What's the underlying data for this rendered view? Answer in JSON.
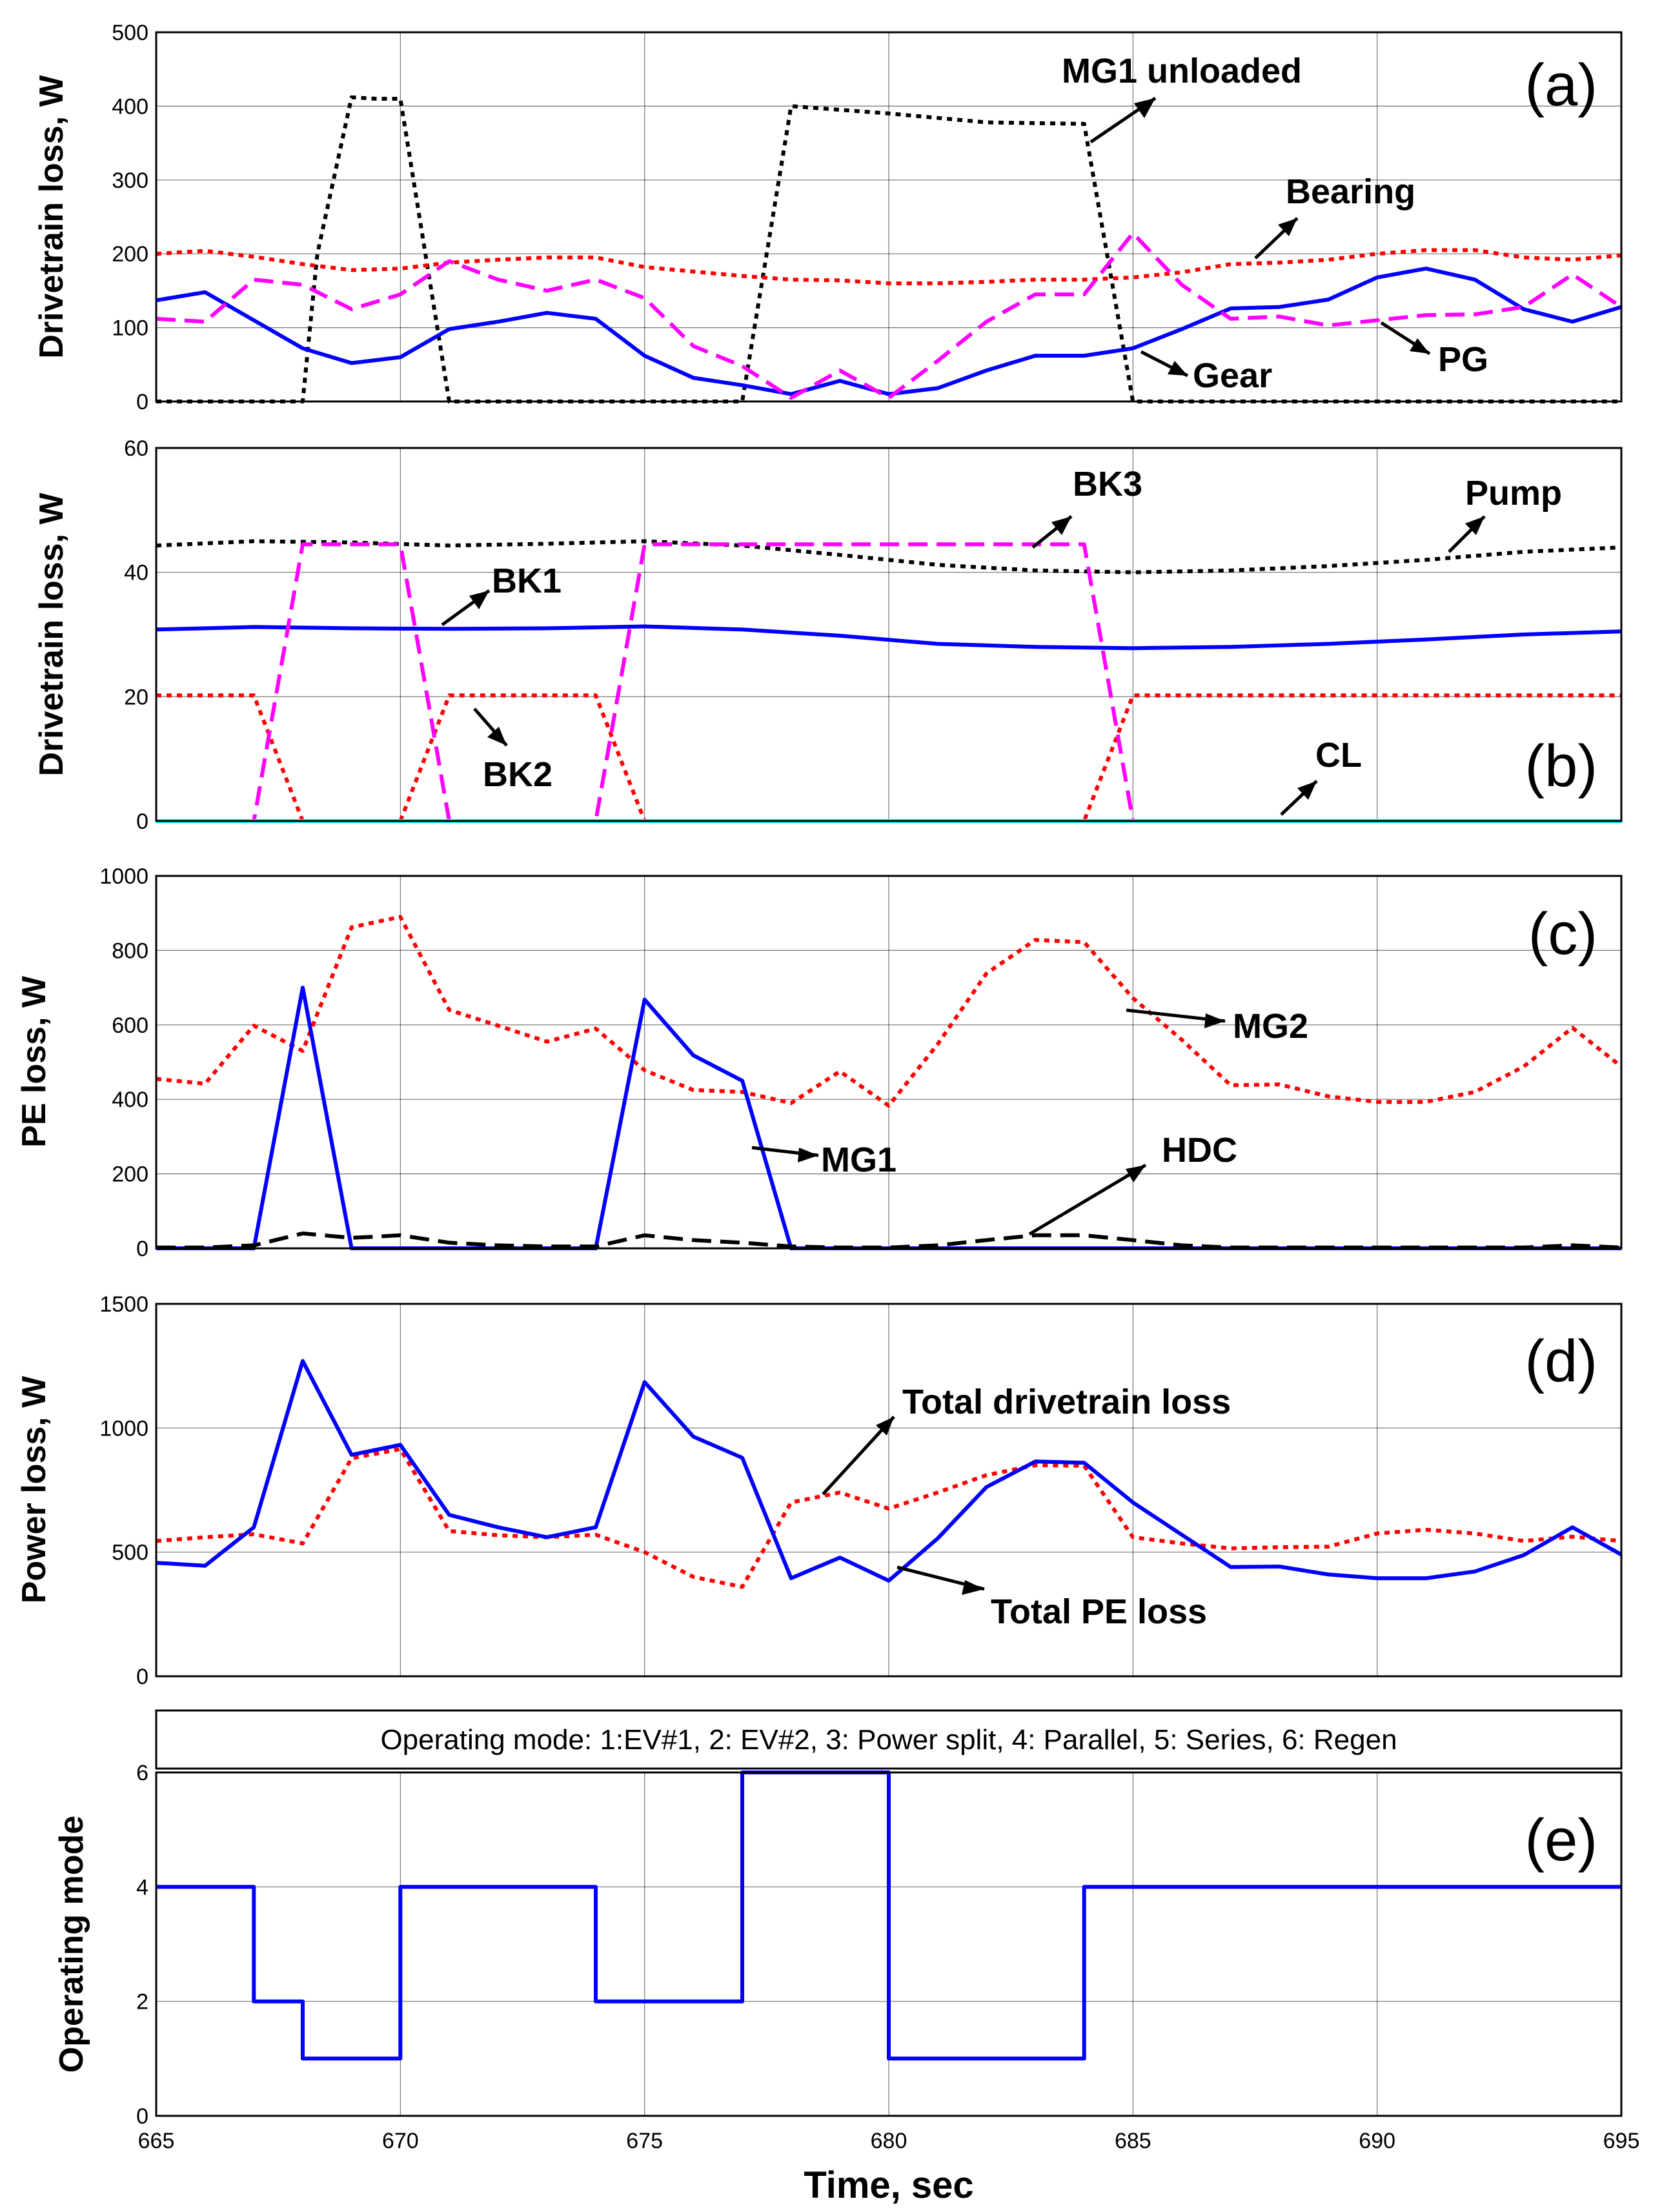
{
  "chart_data": [
    {
      "id": "a",
      "type": "line",
      "panel_label": "(a)",
      "ylabel": "Drivetrain loss, W",
      "ylim": [
        0,
        500
      ],
      "yticks": [
        "0",
        "100",
        "200",
        "300",
        "400",
        "500"
      ],
      "xlim": [
        665,
        695
      ],
      "grid": true,
      "series": [
        {
          "name": "MG1 unloaded",
          "color": "#000000",
          "dash": "dotted",
          "x": [
            665,
            668,
            668.3,
            669,
            669.5,
            670,
            671,
            677,
            678,
            680,
            682,
            684,
            685,
            695
          ],
          "y": [
            0,
            0,
            200,
            412,
            410,
            410,
            0,
            0,
            400,
            390,
            378,
            376,
            0,
            0
          ]
        },
        {
          "name": "Bearing",
          "color": "#ff0000",
          "dash": "dotted",
          "x": [
            665,
            666,
            667,
            668,
            669,
            670,
            671,
            672,
            673,
            674,
            675,
            676,
            677,
            678,
            679,
            680,
            681,
            682,
            683,
            684,
            685,
            686,
            687,
            688,
            689,
            690,
            691,
            692,
            693,
            694,
            695
          ],
          "y": [
            200,
            204,
            196,
            186,
            178,
            180,
            188,
            192,
            195,
            195,
            182,
            176,
            170,
            165,
            164,
            160,
            160,
            162,
            165,
            165,
            168,
            175,
            186,
            188,
            192,
            200,
            205,
            205,
            195,
            192,
            198
          ]
        },
        {
          "name": "Gear",
          "color": "#0000ff",
          "dash": "solid",
          "x": [
            665,
            666,
            667,
            668,
            669,
            670,
            671,
            672,
            673,
            674,
            675,
            676,
            677,
            678,
            679,
            680,
            681,
            682,
            683,
            684,
            685,
            686,
            687,
            688,
            689,
            690,
            691,
            692,
            693,
            694,
            695
          ],
          "y": [
            137,
            148,
            110,
            72,
            52,
            60,
            98,
            108,
            120,
            112,
            62,
            32,
            22,
            10,
            28,
            10,
            18,
            42,
            62,
            62,
            72,
            98,
            126,
            128,
            138,
            168,
            180,
            165,
            125,
            108,
            128
          ]
        },
        {
          "name": "PG",
          "color": "#ff00ff",
          "dash": "dashed",
          "x": [
            665,
            666,
            667,
            668,
            669,
            670,
            671,
            672,
            673,
            674,
            675,
            676,
            677,
            678,
            679,
            680,
            681,
            682,
            683,
            684,
            685,
            686,
            687,
            688,
            689,
            690,
            691,
            692,
            693,
            694,
            695
          ],
          "y": [
            112,
            108,
            165,
            158,
            125,
            145,
            190,
            165,
            150,
            165,
            140,
            75,
            48,
            5,
            42,
            5,
            55,
            108,
            145,
            145,
            228,
            158,
            112,
            115,
            103,
            110,
            117,
            118,
            128,
            172,
            128
          ]
        }
      ],
      "annotations": [
        {
          "text": "MG1 unloaded"
        },
        {
          "text": "Bearing"
        },
        {
          "text": "Gear"
        },
        {
          "text": "PG"
        }
      ]
    },
    {
      "id": "b",
      "type": "line",
      "panel_label": "(b)",
      "ylabel": "Drivetrain loss, W",
      "ylim": [
        0,
        60
      ],
      "yticks": [
        "0",
        "20",
        "40",
        "60"
      ],
      "xlim": [
        665,
        695
      ],
      "grid": true,
      "series": [
        {
          "name": "Pump",
          "color": "#000000",
          "dash": "dotted",
          "x": [
            665,
            667,
            669,
            671,
            673,
            675,
            677,
            679,
            681,
            683,
            685,
            687,
            689,
            691,
            693,
            695
          ],
          "y": [
            44.3,
            45.0,
            44.8,
            44.3,
            44.6,
            45.0,
            44.3,
            42.8,
            41.2,
            40.3,
            40.0,
            40.3,
            41.0,
            42.0,
            43.3,
            44.0
          ]
        },
        {
          "name": "BK1",
          "color": "#0000ff",
          "dash": "solid",
          "x": [
            665,
            667,
            669,
            671,
            673,
            675,
            677,
            679,
            681,
            683,
            685,
            687,
            689,
            691,
            693,
            695
          ],
          "y": [
            30.8,
            31.2,
            31.0,
            30.9,
            31.0,
            31.3,
            30.8,
            29.8,
            28.5,
            28.0,
            27.8,
            28.0,
            28.5,
            29.2,
            30.0,
            30.5
          ]
        },
        {
          "name": "BK2",
          "color": "#ff0000",
          "dash": "dotted",
          "x": [
            665,
            667,
            668,
            670,
            671,
            674,
            675,
            684,
            685,
            695
          ],
          "y": [
            20.2,
            20.2,
            0,
            0,
            20.2,
            20.2,
            0,
            0,
            20.2,
            20.2
          ]
        },
        {
          "name": "BK3",
          "color": "#ff00ff",
          "dash": "dashed",
          "x": [
            665,
            667,
            668,
            670,
            671,
            674,
            675,
            684,
            685,
            695
          ],
          "y": [
            0,
            0,
            44.5,
            44.5,
            0,
            0,
            44.5,
            44.5,
            0,
            0
          ]
        },
        {
          "name": "CL",
          "color": "#00ffff",
          "dash": "solid",
          "x": [
            665,
            695
          ],
          "y": [
            0,
            0
          ]
        }
      ],
      "annotations": [
        {
          "text": "BK3"
        },
        {
          "text": "Pump"
        },
        {
          "text": "BK1"
        },
        {
          "text": "BK2"
        },
        {
          "text": "CL"
        }
      ]
    },
    {
      "id": "c",
      "type": "line",
      "panel_label": "(c)",
      "ylabel": "PE loss, W",
      "ylim": [
        0,
        1000
      ],
      "yticks": [
        "0",
        "200",
        "400",
        "600",
        "800",
        "1000"
      ],
      "xlim": [
        665,
        695
      ],
      "grid": true,
      "series": [
        {
          "name": "MG2",
          "color": "#ff0000",
          "dash": "dotted",
          "x": [
            665,
            666,
            667,
            668,
            669,
            670,
            671,
            672,
            673,
            674,
            675,
            676,
            677,
            678,
            679,
            680,
            681,
            682,
            683,
            684,
            685,
            686,
            687,
            688,
            689,
            690,
            691,
            692,
            693,
            694,
            695
          ],
          "y": [
            455,
            442,
            598,
            530,
            862,
            890,
            640,
            598,
            555,
            590,
            478,
            425,
            420,
            390,
            475,
            383,
            548,
            738,
            828,
            822,
            672,
            560,
            438,
            440,
            408,
            393,
            393,
            420,
            488,
            592,
            488
          ]
        },
        {
          "name": "MG1",
          "color": "#0000ff",
          "dash": "solid",
          "x": [
            665,
            667,
            668,
            669,
            674,
            675,
            676,
            677,
            678,
            695
          ],
          "y": [
            0,
            0,
            700,
            0,
            0,
            668,
            518,
            450,
            0,
            0
          ]
        },
        {
          "name": "HDC",
          "color": "#000000",
          "dash": "dashed",
          "x": [
            665,
            666,
            667,
            668,
            669,
            670,
            671,
            672,
            673,
            674,
            675,
            676,
            677,
            678,
            679,
            680,
            681,
            682,
            683,
            684,
            685,
            686,
            687,
            688,
            689,
            690,
            691,
            692,
            693,
            694,
            695
          ],
          "y": [
            2,
            2,
            8,
            40,
            28,
            35,
            15,
            8,
            5,
            5,
            35,
            22,
            15,
            5,
            2,
            2,
            8,
            22,
            35,
            35,
            22,
            8,
            2,
            2,
            2,
            2,
            2,
            2,
            2,
            8,
            2
          ]
        }
      ],
      "annotations": [
        {
          "text": "MG2"
        },
        {
          "text": "MG1"
        },
        {
          "text": "HDC"
        }
      ]
    },
    {
      "id": "d",
      "type": "line",
      "panel_label": "(d)",
      "ylabel": "Power loss, W",
      "ylim": [
        0,
        1500
      ],
      "yticks": [
        "0",
        "500",
        "1000",
        "1500"
      ],
      "xlim": [
        665,
        695
      ],
      "grid": true,
      "series": [
        {
          "name": "Total drivetrain loss",
          "color": "#ff0000",
          "dash": "dotted",
          "x": [
            665,
            666,
            667,
            668,
            669,
            670,
            671,
            672,
            673,
            674,
            675,
            676,
            677,
            678,
            679,
            680,
            681,
            682,
            683,
            684,
            685,
            686,
            687,
            688,
            689,
            690,
            691,
            692,
            693,
            694,
            695
          ],
          "y": [
            545,
            560,
            572,
            535,
            878,
            915,
            585,
            568,
            560,
            570,
            500,
            400,
            360,
            700,
            740,
            675,
            740,
            810,
            850,
            848,
            560,
            535,
            515,
            520,
            522,
            575,
            590,
            575,
            545,
            562,
            545
          ]
        },
        {
          "name": "Total PE loss",
          "color": "#0000ff",
          "dash": "solid",
          "x": [
            665,
            666,
            667,
            668,
            669,
            670,
            671,
            672,
            673,
            674,
            675,
            676,
            677,
            678,
            679,
            680,
            681,
            682,
            683,
            684,
            685,
            686,
            687,
            688,
            689,
            690,
            691,
            692,
            693,
            694,
            695
          ],
          "y": [
            457,
            445,
            600,
            1270,
            892,
            932,
            650,
            600,
            560,
            600,
            1185,
            965,
            880,
            395,
            478,
            385,
            555,
            762,
            865,
            860,
            700,
            570,
            440,
            442,
            410,
            395,
            395,
            422,
            488,
            600,
            490
          ]
        }
      ],
      "annotations": [
        {
          "text": "Total drivetrain loss"
        },
        {
          "text": "Total PE loss"
        }
      ]
    },
    {
      "id": "e",
      "type": "line",
      "panel_label": "(e)",
      "ylabel": "Operating mode",
      "ylim": [
        0,
        6
      ],
      "yticks": [
        "0",
        "2",
        "4",
        "6"
      ],
      "xlim": [
        665,
        695
      ],
      "xticks": [
        "665",
        "670",
        "675",
        "680",
        "685",
        "690",
        "695"
      ],
      "xlabel": "Time, sec",
      "grid": true,
      "banner": "Operating mode: 1:EV#1, 2: EV#2, 3: Power split, 4: Parallel, 5: Series, 6: Regen",
      "series": [
        {
          "name": "Operating mode",
          "color": "#0000ff",
          "dash": "solid",
          "step": true,
          "x": [
            665,
            667,
            667,
            668,
            668,
            670,
            670,
            674,
            674,
            677,
            677,
            680,
            680,
            684,
            684,
            695
          ],
          "y": [
            4,
            4,
            2,
            2,
            1,
            1,
            4,
            4,
            2,
            2,
            6,
            6,
            1,
            1,
            4,
            4
          ]
        }
      ]
    }
  ]
}
